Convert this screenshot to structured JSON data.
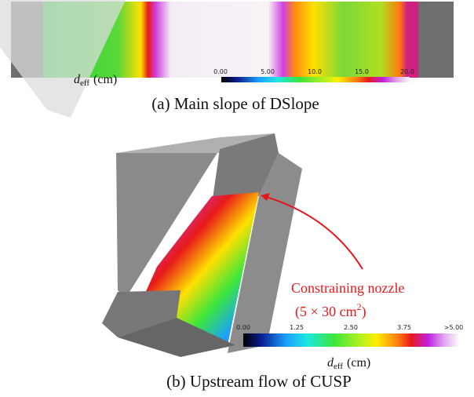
{
  "panels": [
    {
      "colorbar": {
        "ticks": [
          "0.00",
          "5.00",
          "10.0",
          "15.0",
          "20.0"
        ],
        "label": {
          "symbol": "d",
          "subscript": "eff",
          "unit": "(cm)"
        }
      },
      "caption": "(a) Main slope of DSlope"
    },
    {
      "colorbar": {
        "ticks": [
          "0.00",
          "1.25",
          "2.50",
          "3.75",
          ">5.00"
        ],
        "label": {
          "symbol": "d",
          "subscript": "eff",
          "unit": "(cm)"
        }
      },
      "annotation": {
        "line1": "Constraining nozzle",
        "line2": {
          "before": "(5 × 30 cm",
          "superscript": "2",
          "after": ")"
        }
      },
      "caption": "(b) Upstream flow of CUSP"
    }
  ]
}
